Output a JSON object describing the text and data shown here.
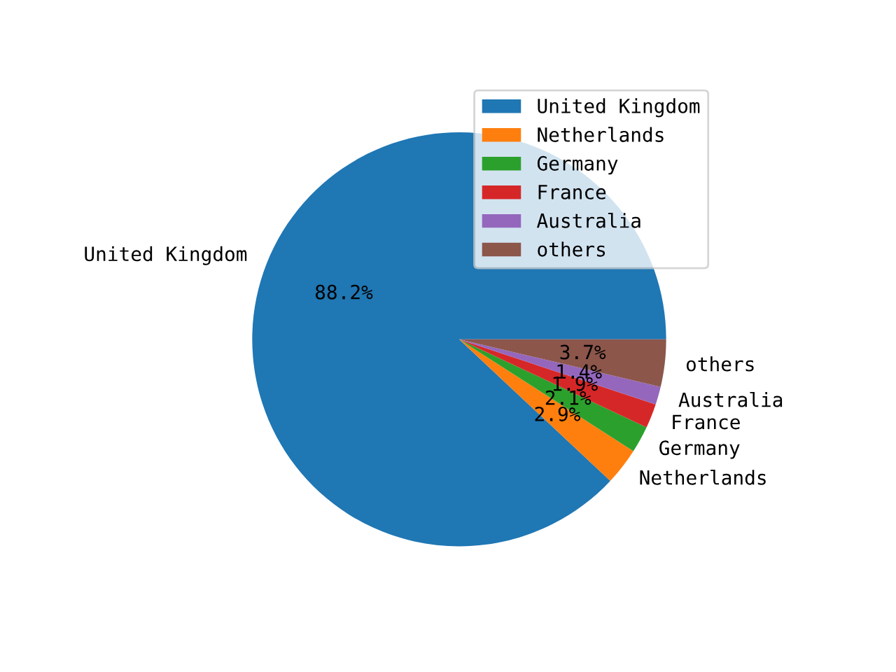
{
  "chart_data": {
    "type": "pie",
    "categories": [
      "United Kingdom",
      "Netherlands",
      "Germany",
      "France",
      "Australia",
      "others"
    ],
    "values": [
      88.2,
      2.9,
      2.1,
      1.9,
      1.4,
      3.7
    ],
    "value_labels": [
      "88.2%",
      "2.9%",
      "2.1%",
      "1.9%",
      "1.4%",
      "3.7%"
    ],
    "colors": [
      "#1f77b4",
      "#ff7f0e",
      "#2ca02c",
      "#d62728",
      "#9467bd",
      "#8c564b"
    ],
    "legend": "top right"
  }
}
